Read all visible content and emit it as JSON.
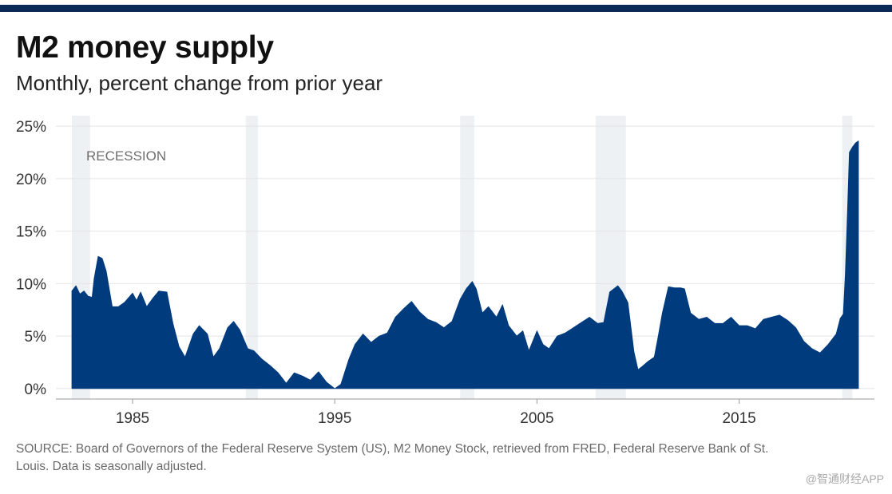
{
  "brand": {
    "bar_color": "#0c2a56",
    "area_color": "#003b7e",
    "recession_color": "#edf1f3",
    "grid_color": "#e4e4e4"
  },
  "header": {
    "title": "M2 money supply",
    "subtitle": "Monthly, percent change from prior year"
  },
  "footer": {
    "source": "SOURCE: Board of Governors of the Federal Reserve System (US), M2 Money Stock, retrieved from FRED, Federal Reserve Bank of St. Louis. Data is seasonally adjusted.",
    "watermark": "@智通财经APP"
  },
  "chart_data": {
    "type": "area",
    "title": "M2 money supply",
    "subtitle": "Monthly, percent change from prior year",
    "xlabel": "",
    "ylabel": "",
    "xlim": [
      1982.0,
      2020.9
    ],
    "ylim": [
      -1,
      26
    ],
    "grid": true,
    "y_ticks": [
      {
        "value": 0,
        "label": "0%"
      },
      {
        "value": 5,
        "label": "5%"
      },
      {
        "value": 10,
        "label": "10%"
      },
      {
        "value": 15,
        "label": "15%"
      },
      {
        "value": 20,
        "label": "20%"
      },
      {
        "value": 25,
        "label": "25%"
      }
    ],
    "x_ticks": [
      {
        "value": 1985,
        "label": "1985"
      },
      {
        "value": 1995,
        "label": "1995"
      },
      {
        "value": 2005,
        "label": "2005"
      },
      {
        "value": 2015,
        "label": "2015"
      }
    ],
    "recession_label": "RECESSION",
    "recessions": [
      [
        1982.0,
        1982.9
      ],
      [
        1990.6,
        1991.2
      ],
      [
        2001.2,
        2001.9
      ],
      [
        2007.9,
        2009.4
      ],
      [
        2020.1,
        2020.6
      ]
    ],
    "series": [
      {
        "name": "M2 percent change from prior year",
        "x": [
          1982.0,
          1982.2,
          1982.4,
          1982.6,
          1982.8,
          1983.0,
          1983.1,
          1983.3,
          1983.5,
          1983.7,
          1984.0,
          1984.3,
          1984.6,
          1985.0,
          1985.2,
          1985.4,
          1985.7,
          1986.0,
          1986.3,
          1986.7,
          1987.0,
          1987.3,
          1987.6,
          1988.0,
          1988.3,
          1988.7,
          1989.0,
          1989.3,
          1989.7,
          1990.0,
          1990.3,
          1990.7,
          1991.0,
          1991.4,
          1991.8,
          1992.2,
          1992.6,
          1993.0,
          1993.4,
          1993.8,
          1994.2,
          1994.6,
          1995.0,
          1995.3,
          1995.7,
          1996.0,
          1996.4,
          1996.8,
          1997.2,
          1997.6,
          1998.0,
          1998.4,
          1998.8,
          1999.2,
          1999.6,
          2000.0,
          2000.4,
          2000.8,
          2001.2,
          2001.5,
          2001.8,
          2002.0,
          2002.3,
          2002.6,
          2003.0,
          2003.3,
          2003.6,
          2004.0,
          2004.3,
          2004.6,
          2005.0,
          2005.3,
          2005.6,
          2006.0,
          2006.4,
          2006.8,
          2007.2,
          2007.6,
          2008.0,
          2008.3,
          2008.6,
          2009.0,
          2009.2,
          2009.5,
          2009.8,
          2010.0,
          2010.2,
          2010.5,
          2010.8,
          2011.0,
          2011.2,
          2011.5,
          2011.8,
          2012.1,
          2012.3,
          2012.6,
          2013.0,
          2013.4,
          2013.8,
          2014.2,
          2014.6,
          2015.0,
          2015.4,
          2015.8,
          2016.2,
          2016.6,
          2017.0,
          2017.4,
          2017.8,
          2018.2,
          2018.6,
          2019.0,
          2019.4,
          2019.8,
          2020.0,
          2020.15,
          2020.25,
          2020.35,
          2020.45,
          2020.6,
          2020.75,
          2020.9
        ],
        "values": [
          9.3,
          9.8,
          9.0,
          9.3,
          8.8,
          8.7,
          10.5,
          12.6,
          12.4,
          11.2,
          7.8,
          7.8,
          8.2,
          9.1,
          8.4,
          9.2,
          7.8,
          8.6,
          9.3,
          9.2,
          6.2,
          4.0,
          3.0,
          5.2,
          6.0,
          5.2,
          3.0,
          3.8,
          5.8,
          6.4,
          5.6,
          3.8,
          3.6,
          2.8,
          2.2,
          1.5,
          0.5,
          1.5,
          1.2,
          0.8,
          1.6,
          0.6,
          0.0,
          0.4,
          2.8,
          4.2,
          5.2,
          4.4,
          5.0,
          5.3,
          6.8,
          7.6,
          8.3,
          7.3,
          6.6,
          6.3,
          5.8,
          6.4,
          8.5,
          9.5,
          10.2,
          9.5,
          7.2,
          7.8,
          6.8,
          8.0,
          6.0,
          5.0,
          5.5,
          3.6,
          5.5,
          4.2,
          3.8,
          5.0,
          5.3,
          5.8,
          6.3,
          6.8,
          6.2,
          6.3,
          9.2,
          9.8,
          9.3,
          8.2,
          3.5,
          1.8,
          2.1,
          2.6,
          3.0,
          5.0,
          7.2,
          9.7,
          9.6,
          9.6,
          9.5,
          7.2,
          6.6,
          6.8,
          6.2,
          6.2,
          6.8,
          6.0,
          6.0,
          5.7,
          6.6,
          6.8,
          7.0,
          6.5,
          5.8,
          4.5,
          3.8,
          3.4,
          4.2,
          5.2,
          6.7,
          7.1,
          10.8,
          16.5,
          22.5,
          23.0,
          23.4,
          23.6
        ]
      }
    ]
  }
}
